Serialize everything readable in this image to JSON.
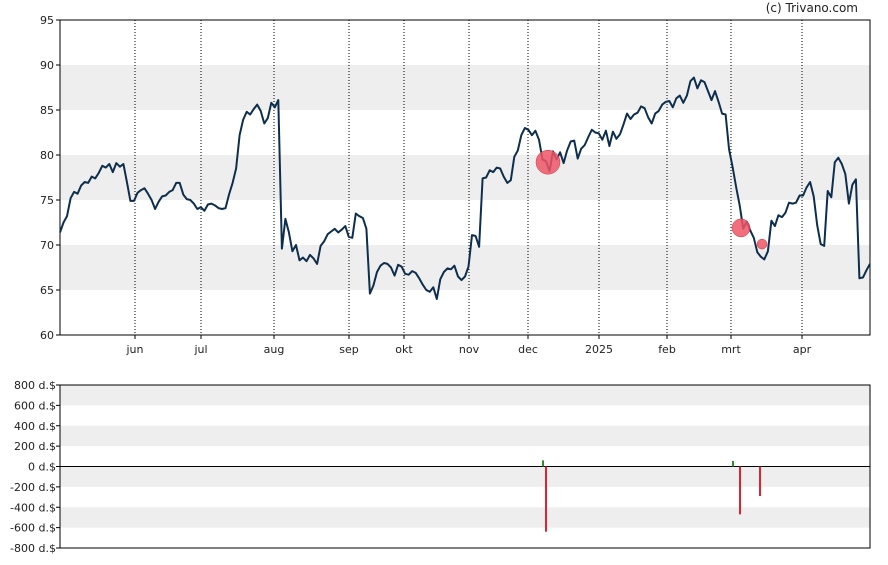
{
  "credit": "(c) Trivano.com",
  "colors": {
    "line": "#0d2f4d",
    "band": "#eeeeee",
    "buy": "#2e8b2e",
    "sell": "#dd2233",
    "marker": "#ee5566"
  },
  "chart_data": [
    {
      "type": "line",
      "title": "",
      "xlabel": "",
      "ylabel": "",
      "ylim": [
        60,
        95
      ],
      "y_ticks": [
        "95",
        "90",
        "85",
        "80",
        "75",
        "70",
        "65",
        "60"
      ],
      "x_ticks": [
        "jun",
        "jul",
        "aug",
        "sep",
        "okt",
        "nov",
        "dec",
        "2025",
        "feb",
        "mrt",
        "apr"
      ],
      "grid": "alternating horizontal bands, dotted vertical month lines",
      "series": [
        {
          "values": [
            71.4,
            72.5,
            73.2,
            75.2,
            75.9,
            75.7,
            76.6,
            77.0,
            76.9,
            77.6,
            77.4,
            78.0,
            78.8,
            78.6,
            79.0,
            78.1,
            79.1,
            78.7,
            79.0,
            77.0,
            74.9,
            74.9,
            75.8,
            76.1,
            76.3,
            75.7,
            75.0,
            74.0,
            74.8,
            75.4,
            75.5,
            75.9,
            76.1,
            76.9,
            76.9,
            75.6,
            75.1,
            75.0,
            74.6,
            74.0,
            74.2,
            73.8,
            74.5,
            74.6,
            74.4,
            74.1,
            74.0,
            74.1,
            75.6,
            76.9,
            78.5,
            82.2,
            83.9,
            84.8,
            84.5,
            85.1,
            85.6,
            84.9,
            83.5,
            84.1,
            85.8,
            85.3,
            86.1,
            69.6,
            72.9,
            71.4,
            69.3,
            70.0,
            68.3,
            68.6,
            68.2,
            68.9,
            68.5,
            67.9,
            69.9,
            70.4,
            71.2,
            71.5,
            71.8,
            71.4,
            71.7,
            72.1,
            70.9,
            70.8,
            73.5,
            73.2,
            73.0,
            71.8,
            64.6,
            65.5,
            67.0,
            67.7,
            68.0,
            67.9,
            67.5,
            66.6,
            67.8,
            67.6,
            66.8,
            66.7,
            67.1,
            66.9,
            66.3,
            65.6,
            65.0,
            64.8,
            65.3,
            64.0,
            66.2,
            67.0,
            67.4,
            67.3,
            67.7,
            66.5,
            66.1,
            66.5,
            67.6,
            71.1,
            71.0,
            69.8,
            77.4,
            77.5,
            78.3,
            78.1,
            78.6,
            78.5,
            77.6,
            76.9,
            77.2,
            79.8,
            80.5,
            82.2,
            83.0,
            82.8,
            82.2,
            82.7,
            81.7,
            79.5,
            79.3,
            78.2,
            80.4,
            79.5,
            80.3,
            79.1,
            80.5,
            81.5,
            81.6,
            79.6,
            80.7,
            81.1,
            82.0,
            82.8,
            82.5,
            82.4,
            81.7,
            82.7,
            81.0,
            82.6,
            81.8,
            82.3,
            83.4,
            84.6,
            84.0,
            84.5,
            84.7,
            85.4,
            85.2,
            84.2,
            83.5,
            84.6,
            84.9,
            85.6,
            85.9,
            86.0,
            85.3,
            86.3,
            86.6,
            85.8,
            86.6,
            88.2,
            88.6,
            87.4,
            88.3,
            88.1,
            87.1,
            86.1,
            87.1,
            85.9,
            84.6,
            84.5,
            80.6,
            78.6,
            76.4,
            74.4,
            71.8,
            72.6,
            71.6,
            70.8,
            69.2,
            68.7,
            68.4,
            69.3,
            72.7,
            72.1,
            73.3,
            73.1,
            73.6,
            74.7,
            74.6,
            74.7,
            75.5,
            75.5,
            76.4,
            77.0,
            75.4,
            72.2,
            70.1,
            69.9,
            76.0,
            75.3,
            79.2,
            79.7,
            79.0,
            77.9,
            74.6,
            76.7,
            77.3,
            66.3,
            66.4,
            67.2,
            67.9
          ]
        }
      ],
      "markers": [
        {
          "x": "dec",
          "y": 79.2,
          "size": "large"
        },
        {
          "x": "mrt",
          "y": 71.9,
          "size": "medium"
        },
        {
          "x": "mrt",
          "y": 70.1,
          "size": "small"
        }
      ]
    },
    {
      "type": "bar",
      "title": "",
      "xlabel": "",
      "ylabel": "",
      "ylim": [
        -800,
        800
      ],
      "y_ticks": [
        "800 d.$",
        "600 d.$",
        "400 d.$",
        "200 d.$",
        "0 d.$",
        "-200 d.$",
        "-400 d.$",
        "-600 d.$",
        "-800 d.$"
      ],
      "grid": "alternating horizontal bands",
      "bars": [
        {
          "x": "dec",
          "value": 60,
          "side": "buy"
        },
        {
          "x": "dec",
          "value": -640,
          "side": "sell"
        },
        {
          "x": "mrt",
          "value": 55,
          "side": "buy"
        },
        {
          "x": "mrt",
          "value": -470,
          "side": "sell"
        },
        {
          "x": "mrt",
          "value": -290,
          "side": "sell"
        }
      ]
    }
  ]
}
